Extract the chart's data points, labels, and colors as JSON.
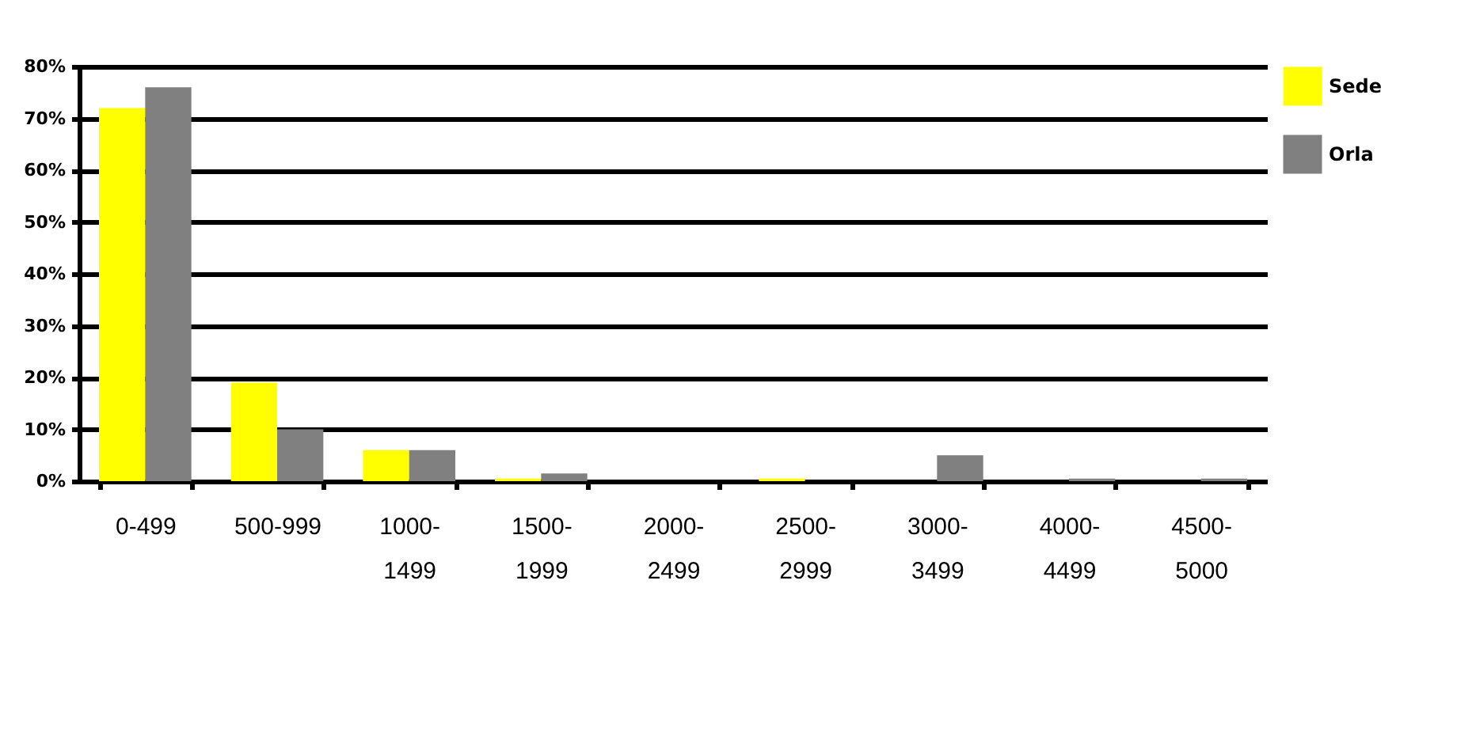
{
  "chart_data": {
    "type": "bar",
    "categories": [
      "0-499",
      "500-999",
      "1000-1499",
      "1500-1999",
      "2000-2499",
      "2500-2999",
      "3000-3499",
      "4000-4499",
      "4500-5000"
    ],
    "series": [
      {
        "name": "Sede",
        "color": "#ffff00",
        "values": [
          72,
          19,
          6,
          0.5,
          0,
          0.5,
          0,
          0,
          0
        ]
      },
      {
        "name": "Orla",
        "color": "#808080",
        "values": [
          76,
          10,
          6,
          1.5,
          0,
          0,
          5,
          0.5,
          0.5
        ]
      }
    ],
    "ylim": [
      0,
      80
    ],
    "yticks": [
      {
        "value": 0,
        "label": "0%"
      },
      {
        "value": 10,
        "label": "10%"
      },
      {
        "value": 20,
        "label": "20%"
      },
      {
        "value": 30,
        "label": "30%"
      },
      {
        "value": 40,
        "label": "40%"
      },
      {
        "value": 50,
        "label": "50%"
      },
      {
        "value": 60,
        "label": "60%"
      },
      {
        "value": 70,
        "label": "70%"
      },
      {
        "value": 80,
        "label": "80%"
      }
    ],
    "grid": true,
    "legend": "right"
  }
}
